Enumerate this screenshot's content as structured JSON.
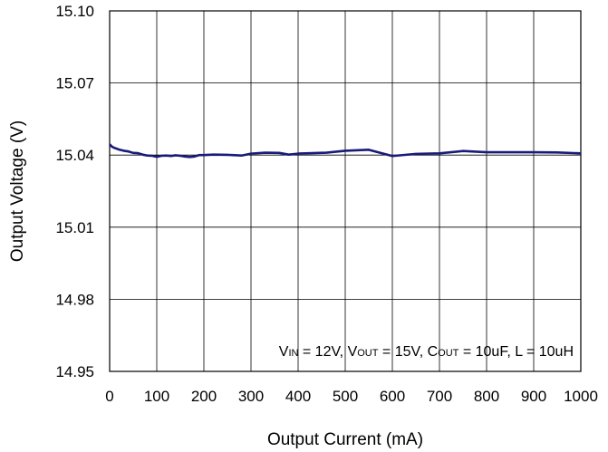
{
  "chart_data": {
    "type": "line",
    "xlabel": "Output Current (mA)",
    "ylabel": "Output Voltage (V)",
    "xlim": [
      0,
      1000
    ],
    "ylim": [
      14.95,
      15.1
    ],
    "x_ticks": [
      "0",
      "100",
      "200",
      "300",
      "400",
      "500",
      "600",
      "700",
      "800",
      "900",
      "1000"
    ],
    "y_ticks": [
      "15.10",
      "15.07",
      "15.04",
      "15.01",
      "14.98",
      "14.95"
    ],
    "grid": true,
    "conditions": [
      {
        "text": "V"
      },
      {
        "text": "IN",
        "sub": true
      },
      {
        "text": " = 12V, V"
      },
      {
        "text": "OUT",
        "sub": true
      },
      {
        "text": " = 15V, C"
      },
      {
        "text": "OUT",
        "sub": true
      },
      {
        "text": " = 10uF, L = 10uH"
      }
    ],
    "series": [
      {
        "color": "#1a1a7a",
        "x": [
          0,
          5,
          10,
          20,
          30,
          40,
          50,
          60,
          70,
          80,
          90,
          100,
          110,
          120,
          130,
          140,
          150,
          160,
          170,
          180,
          190,
          200,
          220,
          250,
          280,
          300,
          330,
          360,
          380,
          400,
          430,
          460,
          500,
          550,
          600,
          650,
          700,
          750,
          800,
          850,
          900,
          950,
          1000
        ],
        "y": [
          15.0445,
          15.0435,
          15.043,
          15.0423,
          15.0418,
          15.0415,
          15.0409,
          15.0408,
          15.0402,
          15.0398,
          15.0397,
          15.0393,
          15.0397,
          15.0398,
          15.0396,
          15.0399,
          15.0397,
          15.0394,
          15.0392,
          15.0394,
          15.04,
          15.04,
          15.0402,
          15.0401,
          15.0398,
          15.0406,
          15.041,
          15.0409,
          15.0402,
          15.0406,
          15.0408,
          15.041,
          15.0418,
          15.0422,
          15.0396,
          15.0405,
          15.0407,
          15.0417,
          15.0412,
          15.0412,
          15.0412,
          15.0411,
          15.0407
        ]
      }
    ]
  }
}
